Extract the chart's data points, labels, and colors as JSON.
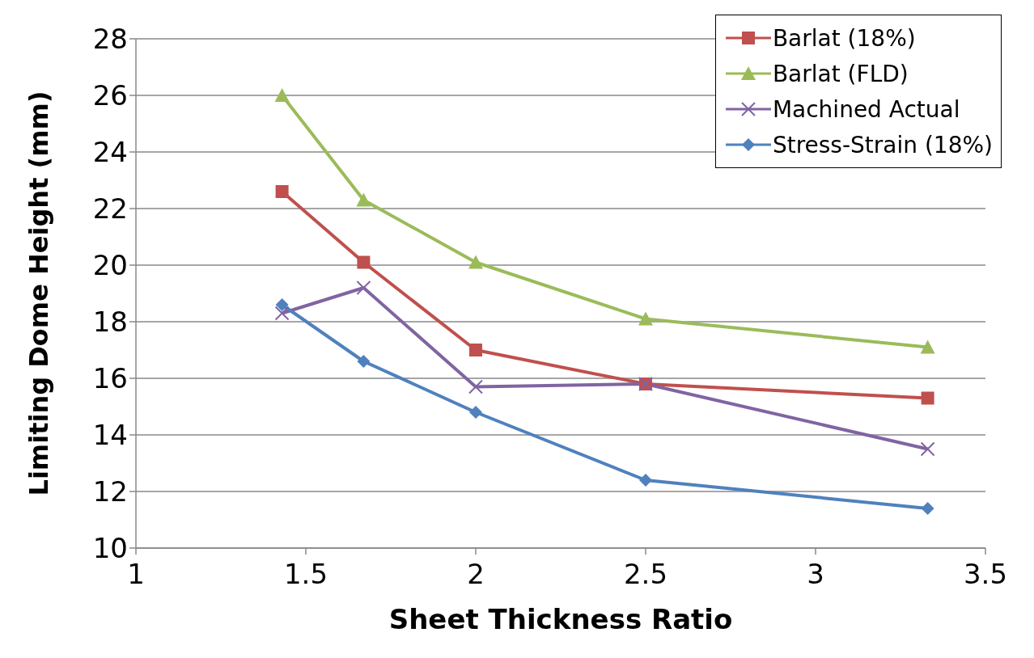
{
  "chart_data": {
    "type": "line",
    "xlabel": "Sheet Thickness Ratio",
    "ylabel": "Limiting Dome Height (mm)",
    "xlim": [
      1,
      3.5
    ],
    "xticks": [
      1,
      1.5,
      2,
      2.5,
      3,
      3.5
    ],
    "ylim": [
      10,
      28
    ],
    "yticks": [
      10,
      12,
      14,
      16,
      18,
      20,
      22,
      24,
      26,
      28
    ],
    "grid": "y",
    "legend": "top right",
    "line_style": "solid",
    "x": [
      1.43,
      1.67,
      2,
      2.5,
      3.33
    ],
    "series": [
      {
        "name": "Barlat (18%)",
        "color": "#c0504d",
        "marker": "square",
        "values": [
          22.6,
          20.1,
          17.0,
          15.8,
          15.3
        ]
      },
      {
        "name": "Barlat (FLD)",
        "color": "#9bbb59",
        "marker": "triangle",
        "values": [
          26.0,
          22.3,
          20.1,
          18.1,
          17.1
        ]
      },
      {
        "name": "Machined Actual",
        "color": "#8064a2",
        "marker": "cross",
        "values": [
          18.3,
          19.2,
          15.7,
          15.8,
          13.5
        ]
      },
      {
        "name": "Stress-Strain (18%)",
        "color": "#4f81bd",
        "marker": "diamond",
        "values": [
          18.6,
          16.6,
          14.8,
          12.4,
          11.4
        ]
      }
    ]
  }
}
